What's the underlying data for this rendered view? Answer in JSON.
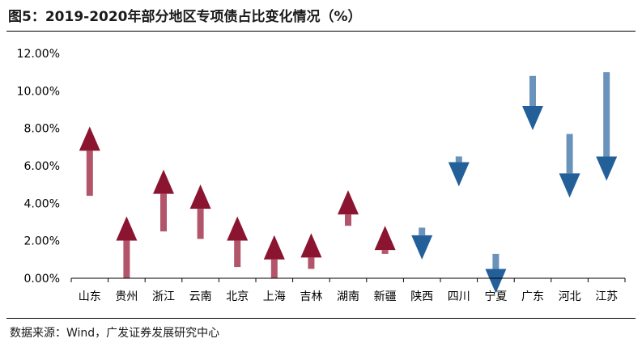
{
  "title": "图5：2019-2020年部分地区专项债占比变化情况（%）",
  "source": "数据来源：Wind，广发证券发展研究中心",
  "colors": {
    "increase": "#B2556A",
    "increase_head": "#8B1530",
    "decrease": "#6A93BC",
    "decrease_head": "#23609A"
  },
  "chart_data": {
    "type": "arrow",
    "title": "2019-2020年部分地区专项债占比变化情况（%）",
    "xlabel": "",
    "ylabel": "",
    "ylim": [
      0,
      12
    ],
    "y_ticks": [
      "0.00%",
      "2.00%",
      "4.00%",
      "6.00%",
      "8.00%",
      "10.00%",
      "12.00%"
    ],
    "grid": false,
    "legend": "none",
    "categories": [
      "山东",
      "贵州",
      "浙江",
      "云南",
      "北京",
      "上海",
      "吉林",
      "湖南",
      "新疆",
      "陕西",
      "四川",
      "宁夏",
      "广东",
      "河北",
      "江苏"
    ],
    "from": [
      4.4,
      0.0,
      2.5,
      2.1,
      0.6,
      0.0,
      0.5,
      2.8,
      1.3,
      2.7,
      6.5,
      1.3,
      10.8,
      7.7,
      11.0
    ],
    "to": [
      8.1,
      3.3,
      5.8,
      5.0,
      3.3,
      2.3,
      2.4,
      4.7,
      2.8,
      1.0,
      4.9,
      -0.8,
      7.9,
      4.3,
      5.2
    ]
  }
}
